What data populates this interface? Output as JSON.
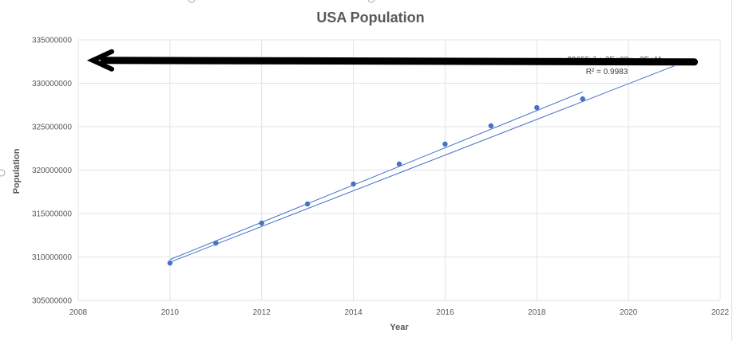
{
  "chart_data": {
    "type": "scatter",
    "title": "USA Population",
    "xlabel": "Year",
    "ylabel": "Population",
    "xlim": [
      2008,
      2022
    ],
    "ylim": [
      305000000,
      335000000
    ],
    "x_ticks": [
      "2008",
      "2010",
      "2012",
      "2014",
      "2016",
      "2018",
      "2020",
      "2022"
    ],
    "y_ticks": [
      "305000000",
      "310000000",
      "315000000",
      "320000000",
      "325000000",
      "330000000",
      "335000000"
    ],
    "grid": true,
    "legend": "none",
    "series": [
      {
        "x": [
          2010,
          2011,
          2012,
          2013,
          2014,
          2015,
          2016,
          2017,
          2018,
          2019
        ],
        "y": [
          309300000,
          311600000,
          313900000,
          316100000,
          318400000,
          320700000,
          323000000,
          325100000,
          327200000,
          328200000
        ],
        "color": "#4472c4"
      }
    ],
    "trendlines": [
      {
        "kind": "linear",
        "x": [
          2010,
          2021
        ],
        "y": [
          309400000,
          332000000
        ]
      },
      {
        "kind": "polynomial",
        "x": [
          2010,
          2019
        ],
        "y": [
          309700000,
          329000000
        ]
      }
    ],
    "equation": "y = -39655x² + 2E+08x - 2E+11",
    "r_squared": "R² = 0.9983",
    "annotation_arrow": {
      "from": [
        2021,
        332500000
      ],
      "to": [
        2008,
        332500000
      ],
      "color": "#000000"
    }
  }
}
